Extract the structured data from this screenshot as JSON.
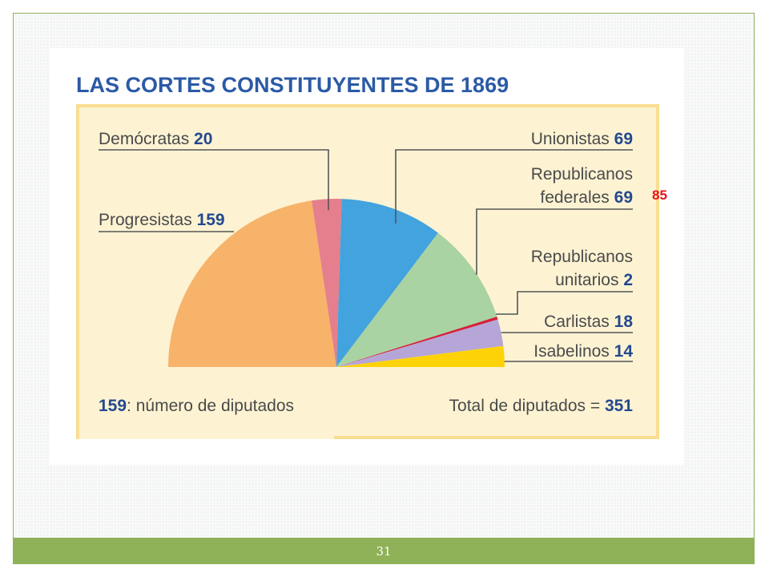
{
  "slide": {
    "page_number": "31",
    "overlay_note": "85"
  },
  "chart_data": {
    "type": "pie",
    "layout": "semicircle",
    "title": "LAS CORTES CONSTITUYENTES DE 1869",
    "slices": [
      {
        "key": "progresistas",
        "label": "Progresistas",
        "value": 159,
        "value_text": "159",
        "color": "#f7b36a"
      },
      {
        "key": "democratas",
        "label": "Demócratas",
        "value": 20,
        "value_text": "20",
        "color": "#e57f8d"
      },
      {
        "key": "unionistas",
        "label": "Unionistas",
        "value": 69,
        "value_text": "69",
        "color": "#43a3de"
      },
      {
        "key": "federales",
        "label_lines": [
          "Republicanos",
          "federales"
        ],
        "value": 69,
        "value_text": "69",
        "color": "#a9d3a2"
      },
      {
        "key": "unitarios",
        "label_lines": [
          "Republicanos",
          "unitarios"
        ],
        "value": 2,
        "value_text": "2",
        "color": "#d4203b"
      },
      {
        "key": "carlistas",
        "label": "Carlistas",
        "value": 18,
        "value_text": "18",
        "color": "#b6a6d7"
      },
      {
        "key": "isabelinos",
        "label": "Isabelinos",
        "value": 14,
        "value_text": "14",
        "color": "#fdd308"
      }
    ],
    "legend_note": {
      "number": "159",
      "text": ": número de diputados"
    },
    "total": {
      "label": "Total de diputados = ",
      "value": "351"
    },
    "colors": {
      "title": "#2b5aa6",
      "value_text": "#24498f",
      "label_text": "#4a4a4a",
      "panel": "#fdf3d3",
      "panel_border": "#f9dd91",
      "leader": "#555555"
    }
  }
}
